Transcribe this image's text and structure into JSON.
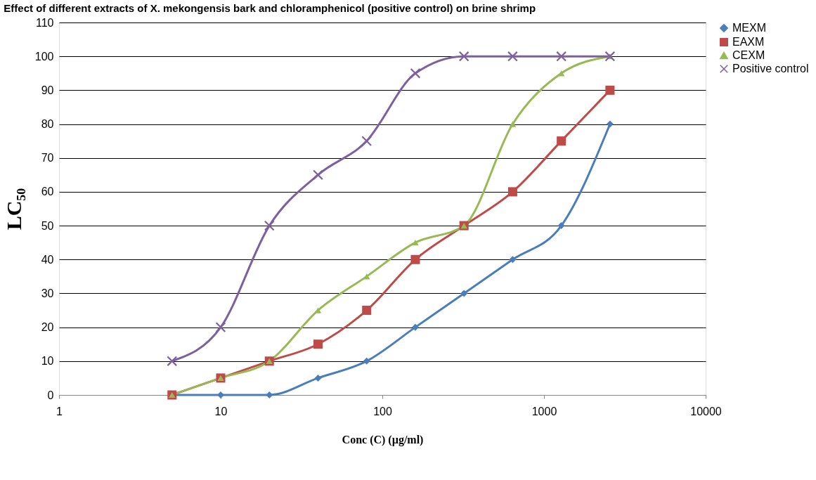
{
  "chart_data": {
    "type": "line",
    "title": "Effect of different extracts of X. mekongensis bark and chloramphenicol (positive control) on brine shrimp",
    "xlabel": "Conc (C) (µg/ml)",
    "ylabel": "LC₅₀",
    "x": [
      5,
      10,
      20,
      40,
      80,
      160,
      320,
      640,
      1280,
      2560
    ],
    "series": [
      {
        "name": "MEXM",
        "color": "#4a7ebb",
        "marker": "diamond",
        "values": [
          0,
          0,
          0,
          5,
          10,
          20,
          30,
          40,
          50,
          80
        ]
      },
      {
        "name": "EAXM",
        "color": "#be4b48",
        "marker": "square",
        "values": [
          0,
          5,
          10,
          15,
          25,
          40,
          50,
          60,
          75,
          90
        ]
      },
      {
        "name": "CEXM",
        "color": "#98b954",
        "marker": "triangle",
        "values": [
          0,
          5,
          10,
          25,
          35,
          45,
          50,
          80,
          95,
          100
        ]
      },
      {
        "name": "Positive control",
        "color": "#7d60a0",
        "marker": "cross",
        "values": [
          10,
          20,
          50,
          65,
          75,
          95,
          100,
          100,
          100,
          100
        ]
      }
    ],
    "log": "x",
    "xlim": [
      1,
      10000
    ],
    "xticks": [
      1,
      10,
      100,
      1000,
      10000
    ],
    "ylim": [
      0,
      110
    ],
    "yticks": [
      0,
      10,
      20,
      30,
      40,
      50,
      60,
      70,
      80,
      90,
      100,
      110
    ],
    "grid": "y",
    "legend": "right",
    "line_style": "solid"
  }
}
